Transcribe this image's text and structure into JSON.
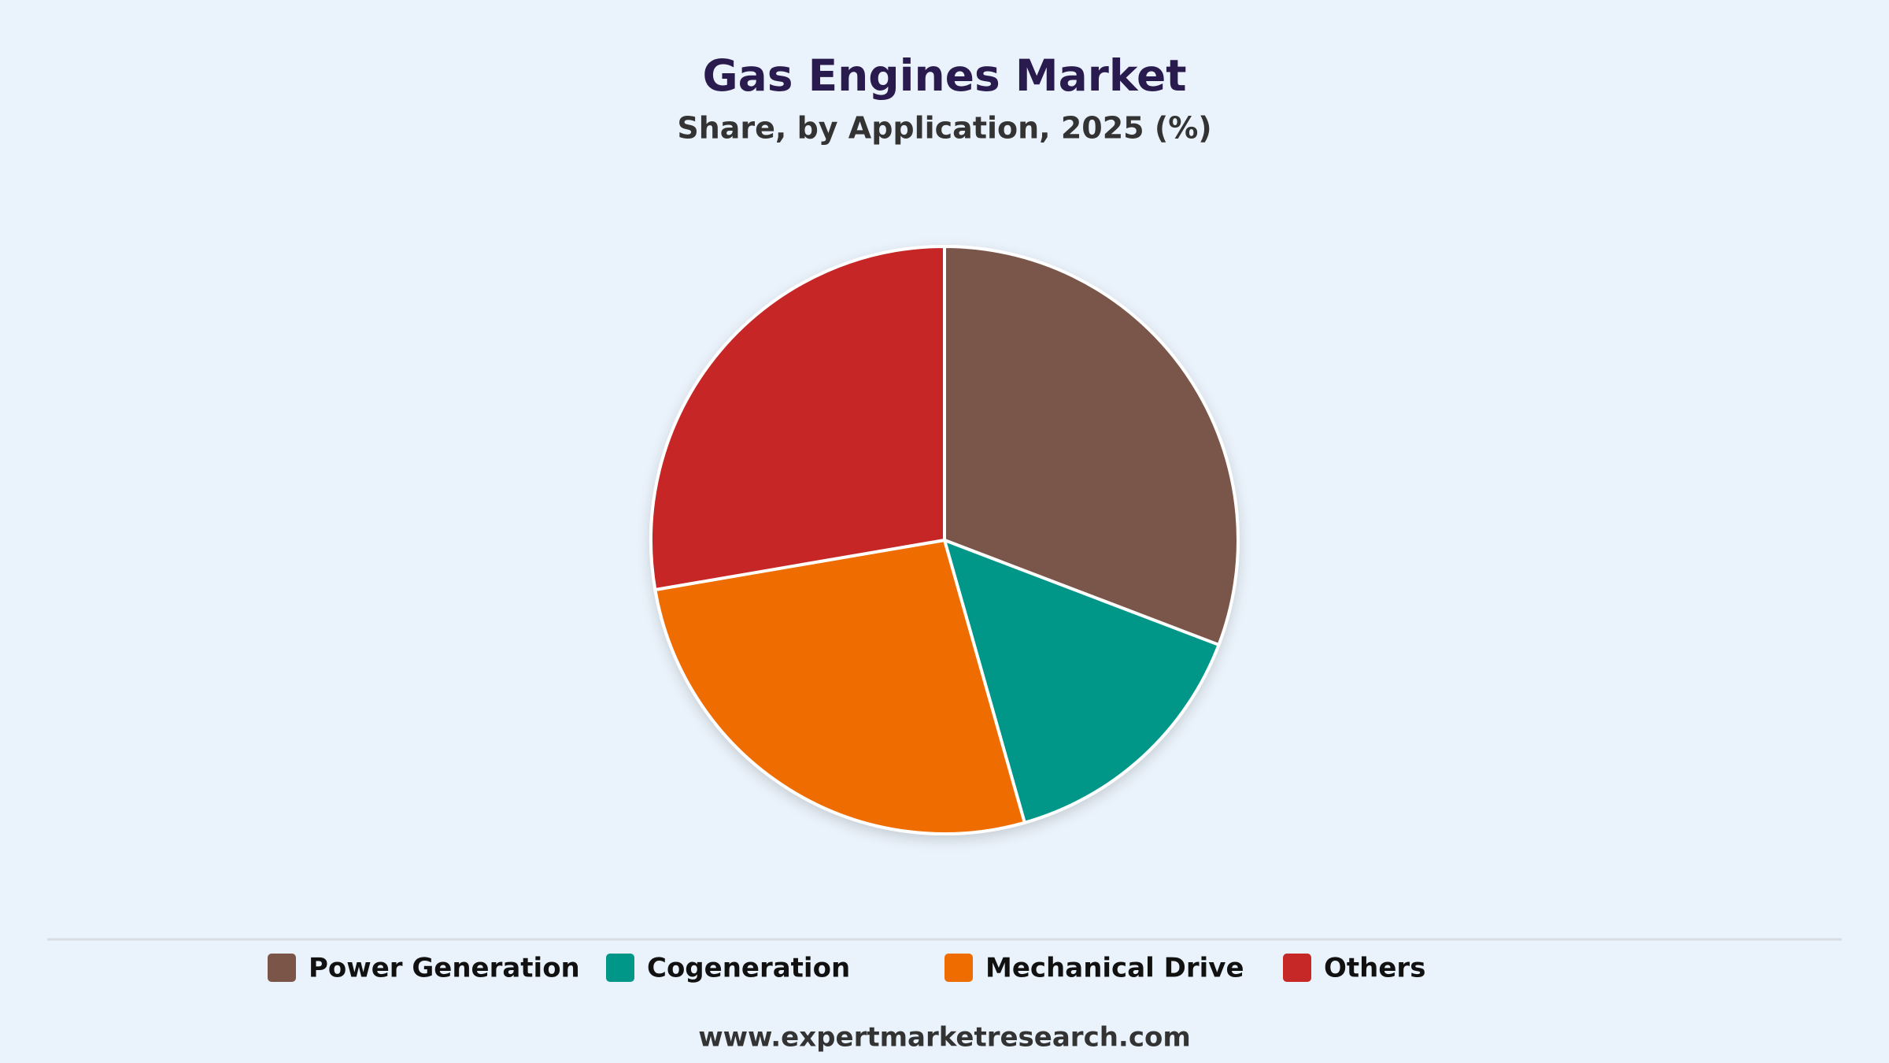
{
  "chart_data": {
    "type": "pie",
    "title": "Gas Engines Market",
    "subtitle": "Share, by Application, 2025 (%)",
    "categories": [
      "Power Generation",
      "Cogeneration",
      "Mechanical Drive",
      "Others"
    ],
    "values": [
      30.8,
      14.8,
      26.7,
      27.7
    ],
    "colors": [
      "#7a5548",
      "#009688",
      "#ef6c00",
      "#c62828"
    ],
    "legend": "bottom",
    "footer": "www.expertmarketresearch.com"
  }
}
